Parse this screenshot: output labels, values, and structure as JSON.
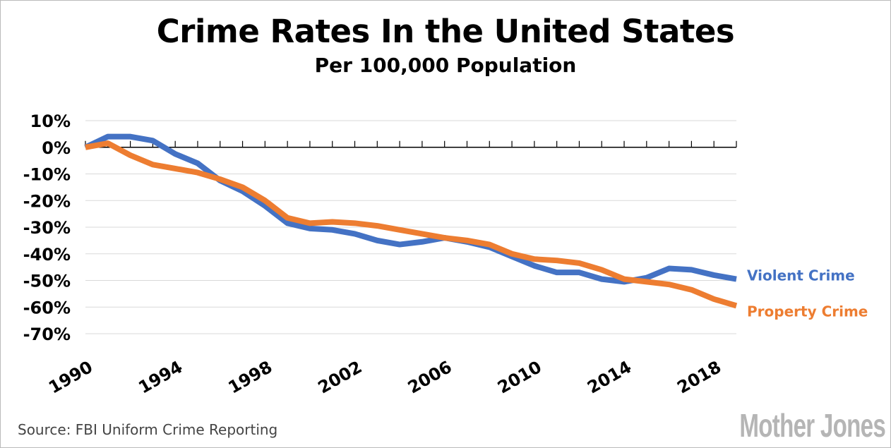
{
  "chart_data": {
    "type": "line",
    "title": "Crime Rates In the United States",
    "subtitle": "Per 100,000 Population",
    "xlabel": "",
    "ylabel": "",
    "x": [
      1990,
      1991,
      1992,
      1993,
      1994,
      1995,
      1996,
      1997,
      1998,
      1999,
      2000,
      2001,
      2002,
      2003,
      2004,
      2005,
      2006,
      2007,
      2008,
      2009,
      2010,
      2011,
      2012,
      2013,
      2014,
      2015,
      2016,
      2017,
      2018,
      2019
    ],
    "x_tick_labels": [
      "1990",
      "1994",
      "1998",
      "2002",
      "2006",
      "2010",
      "2014",
      "2018"
    ],
    "y_tick_labels": [
      "10%",
      "0%",
      "-10%",
      "-20%",
      "-30%",
      "-40%",
      "-50%",
      "-60%",
      "-70%"
    ],
    "ylim": [
      -70,
      10
    ],
    "grid": true,
    "legend": "right, labels at line ends",
    "series": [
      {
        "name": "Violent Crime",
        "color": "#4472C4",
        "values": [
          0,
          4,
          4,
          2.5,
          -2.5,
          -6,
          -12.5,
          -16.5,
          -22,
          -28.5,
          -30.5,
          -31,
          -32.5,
          -35,
          -36.5,
          -35.5,
          -34,
          -35.5,
          -37.5,
          -41,
          -44.5,
          -47,
          -47,
          -49.5,
          -50.5,
          -49,
          -45.5,
          -46,
          -48,
          -49.5
        ]
      },
      {
        "name": "Property Crime",
        "color": "#ED7D31",
        "values": [
          0,
          1.5,
          -3,
          -6.5,
          -8,
          -9.5,
          -12,
          -15,
          -20,
          -26.5,
          -28.5,
          -28,
          -28.5,
          -29.5,
          -31,
          -32.5,
          -34,
          -35,
          -36.5,
          -40,
          -42,
          -42.5,
          -43.5,
          -46,
          -49.5,
          -50.5,
          -51.5,
          -53.5,
          -57,
          -59.5
        ]
      }
    ]
  },
  "footer": {
    "source": "Source: FBI Uniform Crime Reporting",
    "logo": "Mother Jones"
  }
}
